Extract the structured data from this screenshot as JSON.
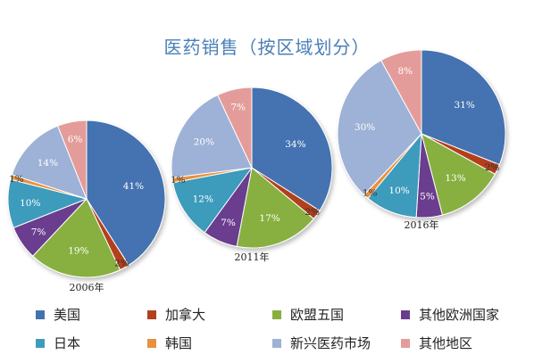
{
  "chart_data": {
    "type": "pie",
    "title": "医药销售（按区域划分）",
    "categories": [
      "美国",
      "加拿大",
      "欧盟五国",
      "其他欧洲国家",
      "日本",
      "韩国",
      "新兴医药市场",
      "其他地区"
    ],
    "colors": [
      "#4472b0",
      "#b2401f",
      "#88b040",
      "#6b3c8e",
      "#3e9bbc",
      "#e8913c",
      "#9eb1d6",
      "#e49c9a"
    ],
    "series": [
      {
        "name": "2006年",
        "values": [
          41,
          2,
          19,
          7,
          10,
          1,
          14,
          6
        ]
      },
      {
        "name": "2011年",
        "values": [
          34,
          2,
          17,
          7,
          12,
          1,
          20,
          7
        ]
      },
      {
        "name": "2016年",
        "values": [
          31,
          2,
          13,
          5,
          10,
          1,
          30,
          8
        ]
      }
    ],
    "legend_position": "bottom"
  }
}
